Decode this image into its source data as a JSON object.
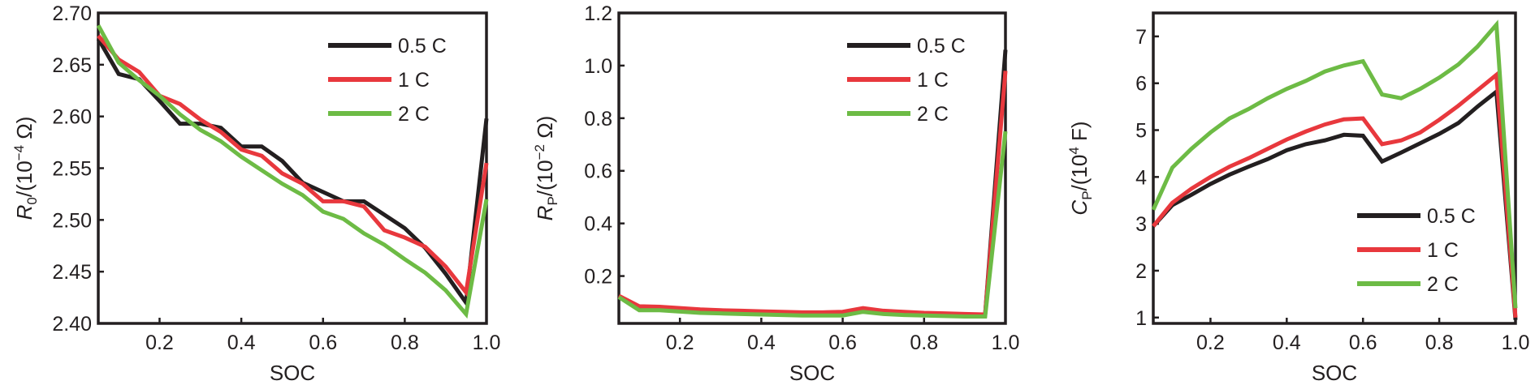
{
  "chart_data": [
    {
      "type": "line",
      "xlabel": "SOC",
      "ylabel": {
        "symbol": "R",
        "subscript": "0",
        "unit_prefix": "/(10",
        "exponent": "−4",
        "unit_suffix": " Ω)"
      },
      "x": [
        0.05,
        0.1,
        0.15,
        0.2,
        0.25,
        0.3,
        0.35,
        0.4,
        0.45,
        0.5,
        0.55,
        0.6,
        0.65,
        0.7,
        0.75,
        0.8,
        0.85,
        0.9,
        0.95,
        1.0
      ],
      "xlim": [
        0.05,
        1.0
      ],
      "xticks": [
        0.2,
        0.4,
        0.6,
        0.8,
        {
          "value": 1.0,
          "label": "1.0"
        }
      ],
      "ylim": [
        2.4,
        2.7
      ],
      "yticks": [
        {
          "value": 2.4,
          "label": "2.40"
        },
        2.45,
        {
          "value": 2.5,
          "label": "2.50"
        },
        2.55,
        {
          "value": 2.6,
          "label": "2.60"
        },
        2.65,
        {
          "value": 2.7,
          "label": "2.70"
        }
      ],
      "legend": "upper right",
      "series": [
        {
          "name": "0.5 C",
          "color": "#231f20",
          "values": [
            2.675,
            2.641,
            2.636,
            2.615,
            2.593,
            2.593,
            2.589,
            2.571,
            2.571,
            2.557,
            2.536,
            2.527,
            2.518,
            2.518,
            2.505,
            2.492,
            2.473,
            2.448,
            2.42,
            2.598
          ]
        },
        {
          "name": "1 C",
          "color": "#e8383d",
          "values": [
            2.678,
            2.655,
            2.643,
            2.62,
            2.612,
            2.597,
            2.585,
            2.568,
            2.562,
            2.545,
            2.535,
            2.518,
            2.518,
            2.513,
            2.49,
            2.483,
            2.474,
            2.455,
            2.43,
            2.555
          ]
        },
        {
          "name": "2 C",
          "color": "#6dbb45",
          "values": [
            2.688,
            2.652,
            2.635,
            2.62,
            2.602,
            2.587,
            2.576,
            2.561,
            2.548,
            2.535,
            2.524,
            2.508,
            2.501,
            2.487,
            2.476,
            2.462,
            2.449,
            2.432,
            2.409,
            2.52
          ]
        }
      ]
    },
    {
      "type": "line",
      "xlabel": "SOC",
      "ylabel": {
        "symbol": "R",
        "subscript": "P",
        "unit_prefix": "/(10",
        "exponent": "−2",
        "unit_suffix": " Ω)"
      },
      "x": [
        0.05,
        0.1,
        0.15,
        0.2,
        0.25,
        0.3,
        0.35,
        0.4,
        0.45,
        0.5,
        0.55,
        0.6,
        0.65,
        0.7,
        0.75,
        0.8,
        0.85,
        0.9,
        0.95,
        1.0
      ],
      "xlim": [
        0.05,
        1.0
      ],
      "xticks": [
        0.2,
        0.4,
        0.6,
        0.8,
        {
          "value": 1.0,
          "label": "1.0"
        }
      ],
      "ylim": [
        0.02,
        1.2
      ],
      "yticks": [
        0.2,
        0.4,
        0.6,
        0.8,
        {
          "value": 1.0,
          "label": "1.0"
        },
        1.2
      ],
      "legend": "upper right",
      "series": [
        {
          "name": "0.5 C",
          "color": "#231f20",
          "values": [
            0.12,
            0.08,
            0.08,
            0.075,
            0.07,
            0.068,
            0.066,
            0.064,
            0.062,
            0.06,
            0.06,
            0.062,
            0.075,
            0.066,
            0.062,
            0.058,
            0.056,
            0.054,
            0.052,
            1.06
          ]
        },
        {
          "name": "1 C",
          "color": "#e8383d",
          "values": [
            0.125,
            0.085,
            0.083,
            0.078,
            0.073,
            0.07,
            0.068,
            0.066,
            0.064,
            0.062,
            0.062,
            0.064,
            0.078,
            0.068,
            0.064,
            0.06,
            0.058,
            0.056,
            0.054,
            0.98
          ]
        },
        {
          "name": "2 C",
          "color": "#6dbb45",
          "values": [
            0.12,
            0.07,
            0.07,
            0.065,
            0.06,
            0.058,
            0.056,
            0.054,
            0.052,
            0.05,
            0.05,
            0.05,
            0.064,
            0.056,
            0.052,
            0.05,
            0.048,
            0.046,
            0.046,
            0.75
          ]
        }
      ]
    },
    {
      "type": "line",
      "xlabel": "SOC",
      "ylabel": {
        "symbol": "C",
        "subscript": "P",
        "unit_prefix": "/(10",
        "exponent": "4",
        "unit_suffix": " F)"
      },
      "x": [
        0.05,
        0.1,
        0.15,
        0.2,
        0.25,
        0.3,
        0.35,
        0.4,
        0.45,
        0.5,
        0.55,
        0.6,
        0.65,
        0.7,
        0.75,
        0.8,
        0.85,
        0.9,
        0.95,
        1.0
      ],
      "xlim": [
        0.05,
        1.0
      ],
      "xticks": [
        0.2,
        0.4,
        0.6,
        0.8,
        {
          "value": 1.0,
          "label": "1.0"
        }
      ],
      "ylim": [
        0.875,
        7.5
      ],
      "yticks": [
        1,
        2,
        3,
        4,
        5,
        6,
        7
      ],
      "legend": "lower right",
      "series": [
        {
          "name": "0.5 C",
          "color": "#231f20",
          "values": [
            2.95,
            3.4,
            3.62,
            3.85,
            4.05,
            4.22,
            4.38,
            4.57,
            4.7,
            4.78,
            4.9,
            4.88,
            4.33,
            4.52,
            4.72,
            4.92,
            5.15,
            5.5,
            5.82,
            0.95
          ]
        },
        {
          "name": "1 C",
          "color": "#e8383d",
          "values": [
            2.95,
            3.45,
            3.75,
            4.0,
            4.22,
            4.4,
            4.6,
            4.8,
            4.97,
            5.12,
            5.23,
            5.25,
            4.7,
            4.78,
            4.95,
            5.22,
            5.52,
            5.85,
            6.18,
            1.0
          ]
        },
        {
          "name": "2 C",
          "color": "#6dbb45",
          "values": [
            3.3,
            4.2,
            4.6,
            4.95,
            5.25,
            5.45,
            5.68,
            5.88,
            6.05,
            6.25,
            6.38,
            6.47,
            5.76,
            5.68,
            5.88,
            6.12,
            6.4,
            6.78,
            7.25,
            1.2
          ]
        }
      ]
    }
  ]
}
